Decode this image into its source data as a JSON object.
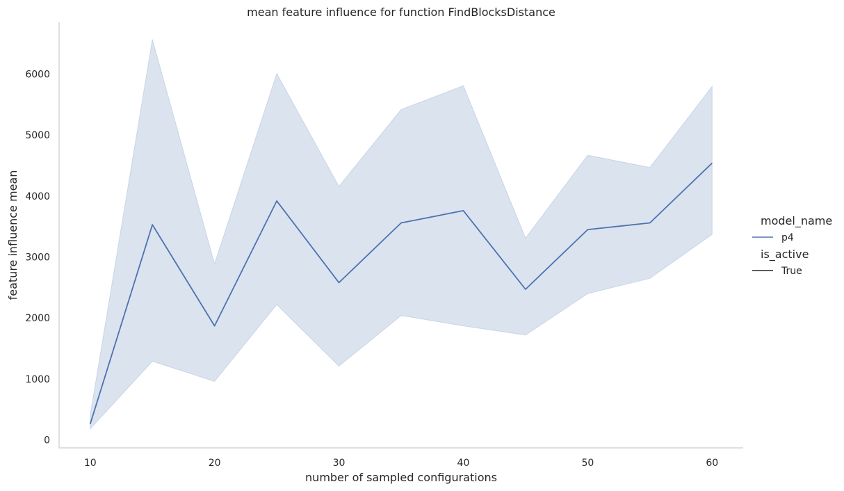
{
  "chart_data": {
    "type": "line",
    "title": "mean feature influence for function FindBlocksDistance",
    "xlabel": "number of sampled configurations",
    "ylabel": "feature influence mean",
    "xlim": [
      7.5,
      62.5
    ],
    "ylim": [
      -130,
      6850
    ],
    "x_ticks": [
      10,
      20,
      30,
      40,
      50,
      60
    ],
    "y_ticks": [
      0,
      1000,
      2000,
      3000,
      4000,
      5000,
      6000
    ],
    "grid": false,
    "legend_position": "right",
    "legend": {
      "hue_title": "model_name",
      "hue_entries": [
        {
          "label": "p4",
          "color": "#4c72b0"
        }
      ],
      "style_title": "is_active",
      "style_entries": [
        {
          "label": "True",
          "color": "#262626"
        }
      ]
    },
    "series": [
      {
        "name": "p4",
        "color": "#4c72b0",
        "x": [
          10,
          15,
          20,
          25,
          30,
          35,
          40,
          45,
          50,
          55,
          60
        ],
        "values": [
          260,
          3530,
          1870,
          3920,
          2580,
          3560,
          3760,
          2470,
          3450,
          3560,
          4540
        ],
        "ci_low": [
          180,
          1290,
          960,
          2220,
          1210,
          2040,
          1870,
          1720,
          2400,
          2650,
          3370
        ],
        "ci_high": [
          400,
          6570,
          2890,
          6010,
          4160,
          5420,
          5810,
          3310,
          4670,
          4470,
          5800
        ]
      }
    ]
  }
}
